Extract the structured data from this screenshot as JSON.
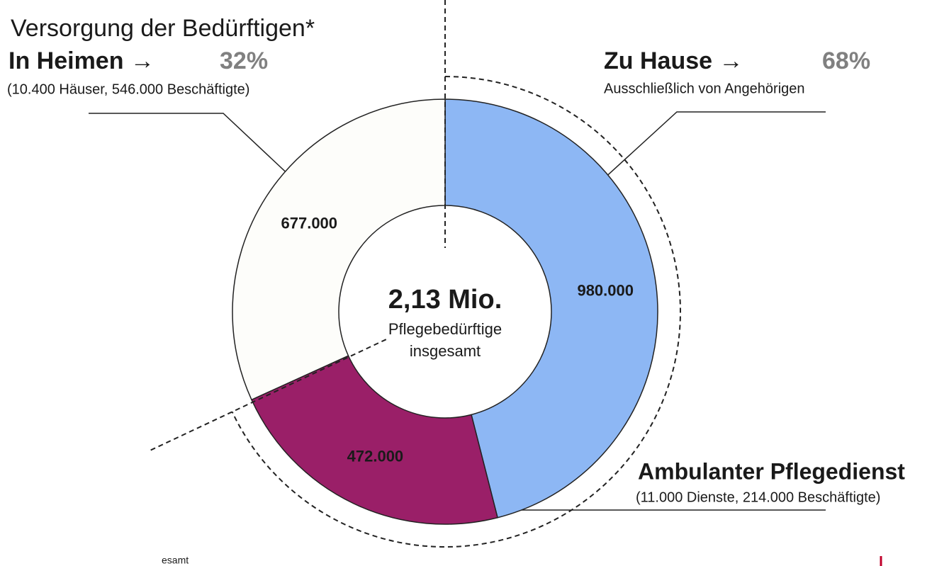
{
  "chart_data": {
    "type": "donut",
    "title": "Versorgung der Bedürftigen*",
    "center_title": "2,13 Mio.",
    "center_lines": [
      "Pflegebedürftige",
      "insgesamt"
    ],
    "values": [
      980000,
      472000,
      677000
    ],
    "value_labels": [
      "980.000",
      "472.000",
      "677.000"
    ],
    "colors": [
      "#8db7f4",
      "#9a1f68",
      "#fdfdfa"
    ],
    "groups": [
      {
        "title": "Zu Hause →",
        "value": 68,
        "label": "68%",
        "note": "Ausschließlich von Angehörigen"
      },
      {
        "title": "In Heimen →",
        "value": 32,
        "label": "32%",
        "note": "(10.400 Häuser, 546.000 Beschäftigte)"
      }
    ],
    "annotation": {
      "title": "Ambulanter Pflegedienst",
      "note": "(11.000 Dienste, 214.000 Beschäftigte)"
    },
    "footnote": "esamt"
  }
}
